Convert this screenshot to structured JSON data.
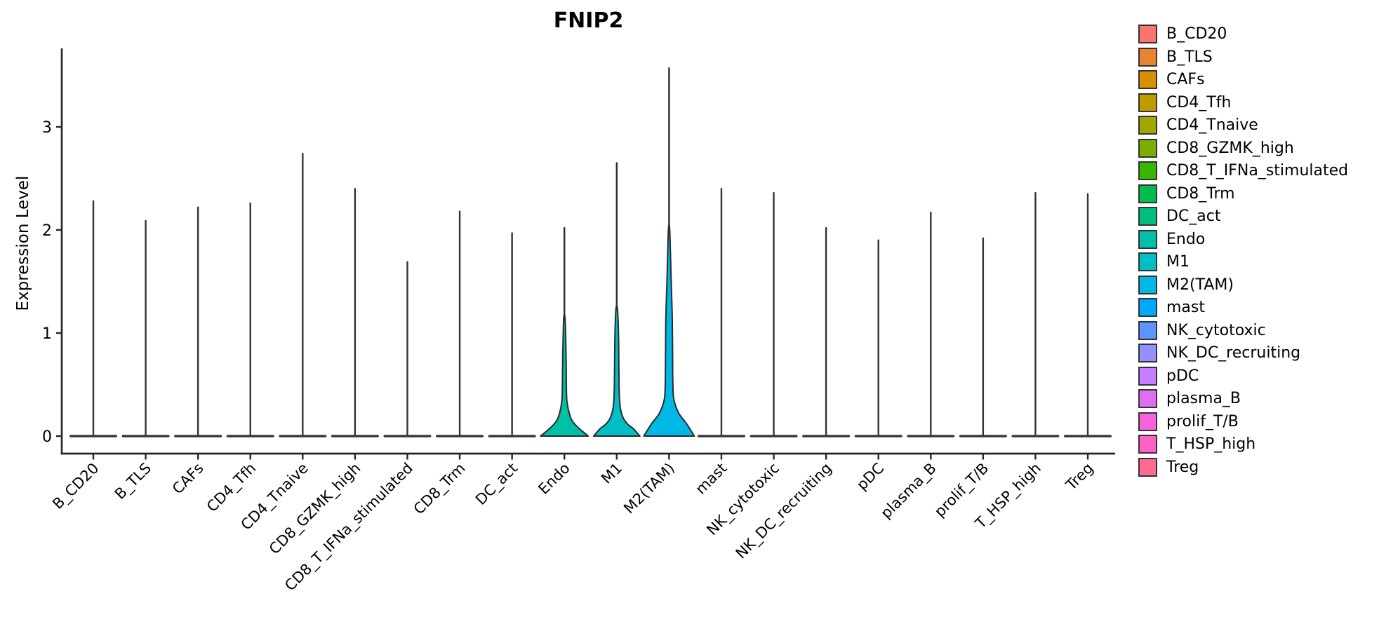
{
  "title": "FNIP2",
  "axes": {
    "y_label": "Expression Level",
    "y_ticks": [
      "0",
      "1",
      "2",
      "3"
    ]
  },
  "chart_data": {
    "type": "violin",
    "title": "FNIP2",
    "xlabel": "",
    "ylabel": "Expression Level",
    "ylim": [
      0,
      3.76
    ],
    "yticks": [
      0,
      1,
      2,
      3
    ],
    "grid": false,
    "legend_position": "right",
    "categories": [
      "B_CD20",
      "B_TLS",
      "CAFs",
      "CD4_Tfh",
      "CD4_Tnaive",
      "CD8_GZMK_high",
      "CD8_T_IFNa_stimulated",
      "CD8_Trm",
      "DC_act",
      "Endo",
      "M1",
      "M2(TAM)",
      "mast",
      "NK_cytotoxic",
      "NK_DC_recruiting",
      "pDC",
      "plasma_B",
      "prolif_T/B",
      "T_HSP_high",
      "Treg"
    ],
    "max_expression": [
      2.28,
      2.09,
      2.22,
      2.26,
      2.74,
      2.4,
      1.69,
      2.18,
      1.97,
      2.02,
      2.65,
      3.57,
      2.4,
      2.36,
      2.02,
      1.9,
      2.17,
      1.92,
      2.36,
      2.35
    ],
    "colors": [
      "#F8766D",
      "#EA8331",
      "#D89000",
      "#C09B00",
      "#A3A500",
      "#7CAE00",
      "#39B600",
      "#00BB4E",
      "#00BF7D",
      "#00C1A7",
      "#00BFC4",
      "#00B8E5",
      "#00A9FF",
      "#5E94FF",
      "#9590FF",
      "#C77CFF",
      "#DE6FF1",
      "#F862DF",
      "#FF61C5",
      "#FF6B91"
    ],
    "note_bulk_at_zero": "all populations have density concentrated at 0; only Endo, M1 and M2(TAM) show a visible expressing tail",
    "violin_profiles": {
      "Endo": [
        [
          0,
          34
        ],
        [
          0.08,
          20
        ],
        [
          0.15,
          11
        ],
        [
          0.22,
          7
        ],
        [
          0.32,
          4
        ],
        [
          0.42,
          3
        ],
        [
          0.8,
          2.3
        ],
        [
          1.14,
          1
        ]
      ],
      "M1": [
        [
          0,
          33
        ],
        [
          0.07,
          24
        ],
        [
          0.12,
          15
        ],
        [
          0.18,
          9
        ],
        [
          0.28,
          5
        ],
        [
          0.42,
          3.6
        ],
        [
          0.6,
          3.2
        ],
        [
          1.0,
          2.5
        ],
        [
          1.24,
          1
        ]
      ],
      "M2(TAM)": [
        [
          0,
          36
        ],
        [
          0.12,
          25
        ],
        [
          0.22,
          14
        ],
        [
          0.35,
          7
        ],
        [
          0.49,
          5.5
        ],
        [
          0.83,
          5
        ],
        [
          1.17,
          4.5
        ],
        [
          1.5,
          3
        ],
        [
          1.99,
          1
        ]
      ]
    }
  },
  "legend": {
    "items": [
      {
        "label": "B_CD20",
        "color": "#F8766D"
      },
      {
        "label": "B_TLS",
        "color": "#EA8331"
      },
      {
        "label": "CAFs",
        "color": "#D89000"
      },
      {
        "label": "CD4_Tfh",
        "color": "#C09B00"
      },
      {
        "label": "CD4_Tnaive",
        "color": "#A3A500"
      },
      {
        "label": "CD8_GZMK_high",
        "color": "#7CAE00"
      },
      {
        "label": "CD8_T_IFNa_stimulated",
        "color": "#39B600"
      },
      {
        "label": "CD8_Trm",
        "color": "#00BB4E"
      },
      {
        "label": "DC_act",
        "color": "#00BF7D"
      },
      {
        "label": "Endo",
        "color": "#00C1A7"
      },
      {
        "label": "M1",
        "color": "#00BFC4"
      },
      {
        "label": "M2(TAM)",
        "color": "#00B8E5"
      },
      {
        "label": "mast",
        "color": "#00A9FF"
      },
      {
        "label": "NK_cytotoxic",
        "color": "#5E94FF"
      },
      {
        "label": "NK_DC_recruiting",
        "color": "#9590FF"
      },
      {
        "label": "pDC",
        "color": "#C77CFF"
      },
      {
        "label": "plasma_B",
        "color": "#DE6FF1"
      },
      {
        "label": "prolif_T/B",
        "color": "#F862DF"
      },
      {
        "label": "T_HSP_high",
        "color": "#FF61C5"
      },
      {
        "label": "Treg",
        "color": "#FF6B91"
      }
    ]
  }
}
